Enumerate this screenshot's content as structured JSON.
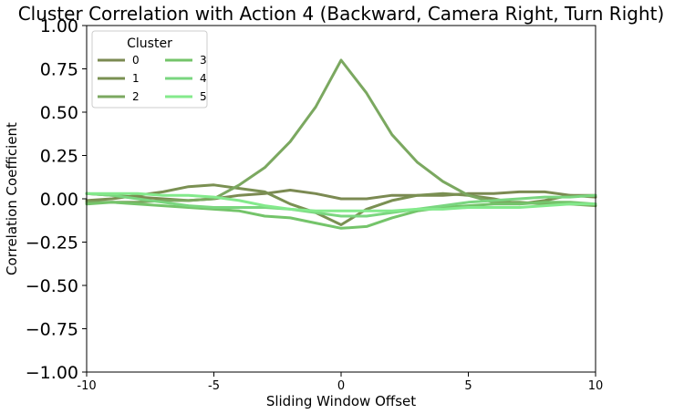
{
  "chart_data": {
    "type": "line",
    "title": "Cluster Correlation with Action 4 (Backward, Camera Right, Turn Right)",
    "xlabel": "Sliding Window Offset",
    "ylabel": "Correlation Coefficient",
    "xlim": [
      -10,
      10
    ],
    "ylim": [
      -1.0,
      1.0
    ],
    "xticks": [
      -10,
      -5,
      0,
      5,
      10
    ],
    "xtick_labels": [
      "-10",
      "-5",
      "0",
      "5",
      "10"
    ],
    "yticks": [
      -1.0,
      -0.75,
      -0.5,
      -0.25,
      0.0,
      0.25,
      0.5,
      0.75,
      1.0
    ],
    "ytick_labels": [
      "−1.00",
      "−0.75",
      "−0.50",
      "−0.25",
      "0.00",
      "0.25",
      "0.50",
      "0.75",
      "1.00"
    ],
    "grid": false,
    "legend": {
      "title": "Cluster",
      "location": "top-left",
      "ncol": 2
    },
    "x": [
      -10,
      -9,
      -8,
      -7,
      -6,
      -5,
      -4,
      -3,
      -2,
      -1,
      0,
      1,
      2,
      3,
      4,
      5,
      6,
      7,
      8,
      9,
      10
    ],
    "series": [
      {
        "name": "0",
        "color": "#7b8a52",
        "values": [
          0.03,
          0.02,
          0.01,
          0.0,
          -0.01,
          0.0,
          0.02,
          0.03,
          0.05,
          0.03,
          0.0,
          0.0,
          0.02,
          0.02,
          0.02,
          0.03,
          0.03,
          0.04,
          0.04,
          0.02,
          0.01
        ]
      },
      {
        "name": "1",
        "color": "#7a9052",
        "values": [
          -0.01,
          0.0,
          0.02,
          0.04,
          0.07,
          0.08,
          0.06,
          0.04,
          -0.03,
          -0.08,
          -0.15,
          -0.06,
          -0.01,
          0.02,
          0.03,
          0.02,
          0.0,
          -0.03,
          -0.01,
          0.02,
          0.02
        ]
      },
      {
        "name": "2",
        "color": "#7ba860",
        "values": [
          -0.02,
          -0.02,
          -0.02,
          -0.01,
          -0.01,
          0.0,
          0.08,
          0.18,
          0.33,
          0.53,
          0.8,
          0.61,
          0.37,
          0.21,
          0.1,
          0.02,
          -0.02,
          -0.02,
          -0.03,
          -0.03,
          -0.04
        ]
      },
      {
        "name": "3",
        "color": "#74c46a",
        "values": [
          -0.03,
          -0.02,
          -0.03,
          -0.04,
          -0.05,
          -0.06,
          -0.07,
          -0.1,
          -0.11,
          -0.14,
          -0.17,
          -0.16,
          -0.11,
          -0.07,
          -0.05,
          -0.04,
          -0.03,
          -0.03,
          -0.02,
          -0.02,
          -0.03
        ]
      },
      {
        "name": "4",
        "color": "#7ad67f",
        "values": [
          0.03,
          0.02,
          0.0,
          -0.02,
          -0.04,
          -0.05,
          -0.05,
          -0.05,
          -0.06,
          -0.08,
          -0.1,
          -0.1,
          -0.08,
          -0.06,
          -0.04,
          -0.02,
          -0.01,
          0.0,
          0.01,
          0.01,
          0.02
        ]
      },
      {
        "name": "5",
        "color": "#84ea8c",
        "values": [
          0.03,
          0.03,
          0.03,
          0.02,
          0.02,
          0.01,
          -0.01,
          -0.04,
          -0.06,
          -0.07,
          -0.07,
          -0.07,
          -0.07,
          -0.06,
          -0.06,
          -0.05,
          -0.05,
          -0.05,
          -0.04,
          -0.03,
          -0.03
        ]
      }
    ]
  }
}
